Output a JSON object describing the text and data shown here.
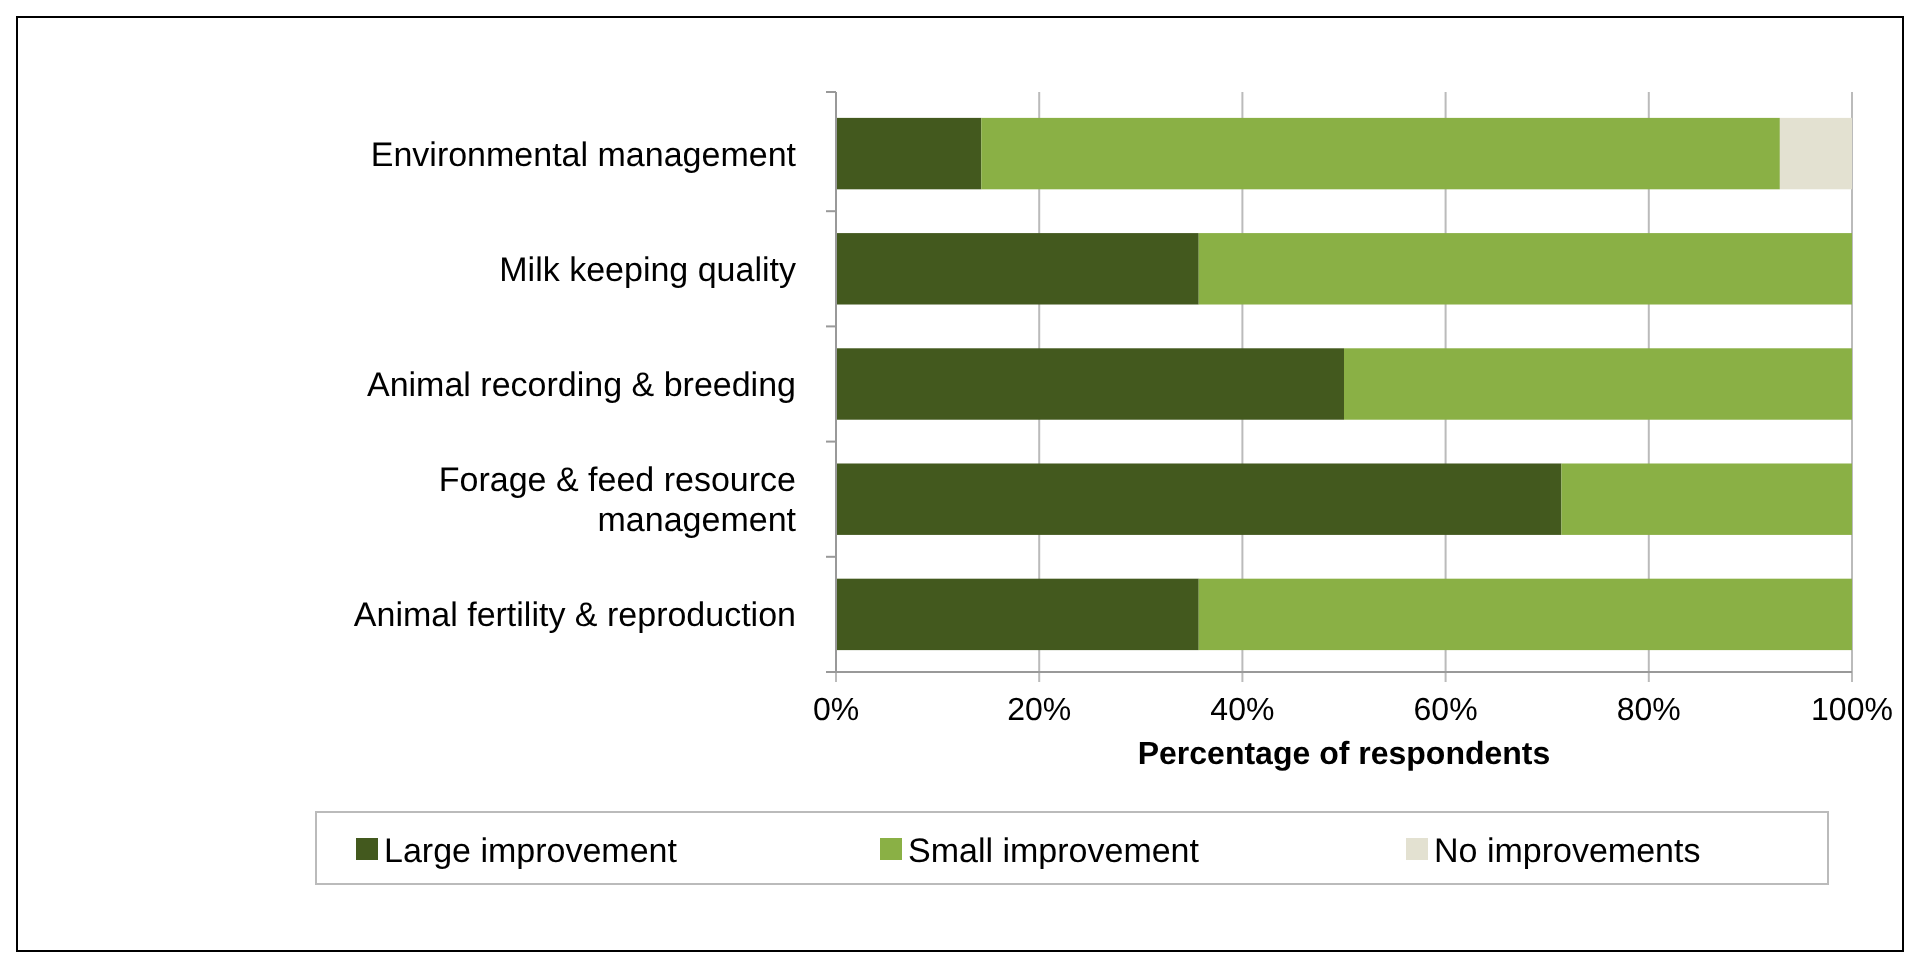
{
  "chart_data": {
    "type": "bar",
    "orientation": "horizontal",
    "stacked": true,
    "categories": [
      "Environmental management",
      "Milk keeping quality",
      "Animal recording & breeding",
      "Forage & feed resource management",
      "Animal fertility & reproduction"
    ],
    "series": [
      {
        "name": "Large improvement",
        "color": "#43591e",
        "values": [
          14.3,
          35.7,
          50,
          71.4,
          35.7
        ]
      },
      {
        "name": "Small improvement",
        "color": "#8ab045",
        "values": [
          78.6,
          64.3,
          50,
          28.6,
          64.3
        ]
      },
      {
        "name": "No improvements",
        "color": "#e3e1d1",
        "values": [
          7.1,
          0,
          0,
          0,
          0
        ]
      }
    ],
    "xlabel": "Percentage of respondents",
    "xlim": [
      0,
      100
    ],
    "xticks": [
      {
        "value": 0,
        "label": "0%"
      },
      {
        "value": 20,
        "label": "20%"
      },
      {
        "value": 40,
        "label": "40%"
      },
      {
        "value": 60,
        "label": "60%"
      },
      {
        "value": 80,
        "label": "80%"
      },
      {
        "value": 100,
        "label": "100%"
      }
    ],
    "grid": "x",
    "legend": "bottom"
  }
}
